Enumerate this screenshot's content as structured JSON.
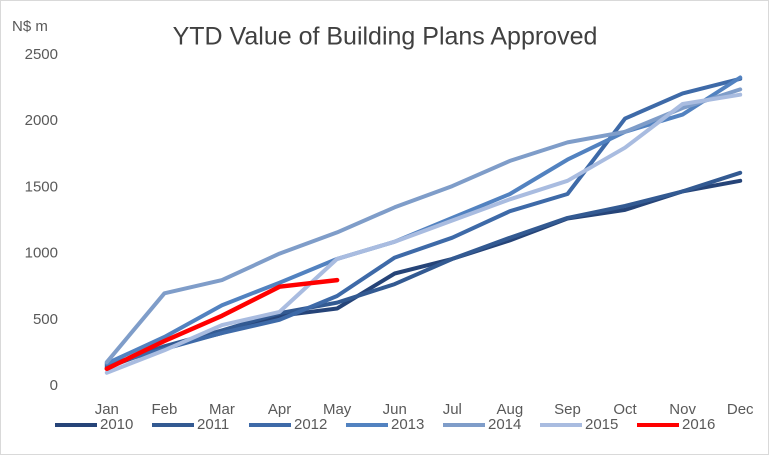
{
  "chart_data": {
    "type": "line",
    "title": "YTD Value of Building Plans Approved",
    "y_label": "N$ m",
    "categories": [
      "Jan",
      "Feb",
      "Mar",
      "Apr",
      "May",
      "Jun",
      "Jul",
      "Aug",
      "Sep",
      "Oct",
      "Nov",
      "Dec"
    ],
    "ylim": [
      0,
      2500
    ],
    "yticks": [
      0,
      500,
      1000,
      1500,
      2000,
      2500
    ],
    "grid": false,
    "legend": "bottom",
    "series": [
      {
        "name": "2010",
        "color": "#264478",
        "values": [
          150,
          290,
          400,
          530,
          585,
          850,
          960,
          1100,
          1265,
          1330,
          1470,
          1550
        ]
      },
      {
        "name": "2011",
        "color": "#335a92",
        "values": [
          140,
          300,
          420,
          550,
          630,
          770,
          960,
          1120,
          1270,
          1360,
          1470,
          1610
        ]
      },
      {
        "name": "2012",
        "color": "#3e6aa8",
        "values": [
          160,
          280,
          400,
          500,
          680,
          970,
          1120,
          1320,
          1450,
          2020,
          2210,
          2320
        ]
      },
      {
        "name": "2013",
        "color": "#5282c0",
        "values": [
          170,
          370,
          610,
          780,
          960,
          1090,
          1270,
          1450,
          1710,
          1920,
          2050,
          2330
        ]
      },
      {
        "name": "2014",
        "color": "#7f9dc9",
        "values": [
          180,
          700,
          800,
          1000,
          1160,
          1350,
          1510,
          1700,
          1840,
          1920,
          2100,
          2240
        ]
      },
      {
        "name": "2015",
        "color": "#a9bce0",
        "values": [
          100,
          270,
          460,
          560,
          960,
          1090,
          1250,
          1410,
          1550,
          1800,
          2130,
          2200
        ]
      },
      {
        "name": "2016",
        "color": "#ff0000",
        "values": [
          130,
          340,
          530,
          750,
          800,
          null,
          null,
          null,
          null,
          null,
          null,
          null
        ]
      }
    ]
  }
}
